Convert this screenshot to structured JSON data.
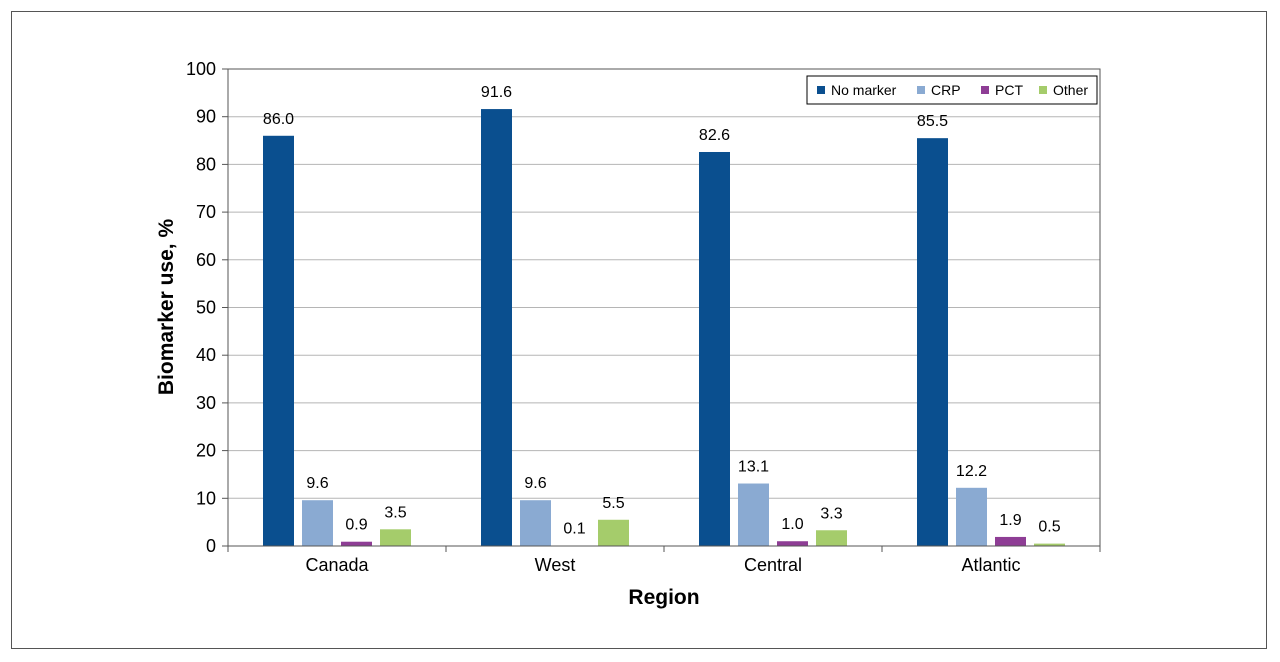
{
  "chart_data": {
    "type": "bar",
    "title": "",
    "xlabel": "Region",
    "ylabel": "Biomarker use, %",
    "ylim": [
      0,
      100
    ],
    "yticks": [
      0,
      10,
      20,
      30,
      40,
      50,
      60,
      70,
      80,
      90,
      100
    ],
    "grid": true,
    "legend_position": "top-right",
    "categories": [
      "Canada",
      "West",
      "Central",
      "Atlantic"
    ],
    "series": [
      {
        "name": "No marker",
        "color": "#0a4f8f",
        "values": [
          86.0,
          91.6,
          82.6,
          85.5
        ],
        "labels": [
          "86.0",
          "91.6",
          "82.6",
          "85.5"
        ]
      },
      {
        "name": "CRP",
        "color": "#8aaad2",
        "values": [
          9.6,
          9.6,
          13.1,
          12.2
        ],
        "labels": [
          "9.6",
          "9.6",
          "13.1",
          "12.2"
        ]
      },
      {
        "name": "PCT",
        "color": "#8e3d95",
        "values": [
          0.9,
          0.1,
          1.0,
          1.9
        ],
        "labels": [
          "0.9",
          "0.1",
          "1.0",
          "1.9"
        ]
      },
      {
        "name": "Other",
        "color": "#a5cc6b",
        "values": [
          3.5,
          5.5,
          3.3,
          0.5
        ],
        "labels": [
          "3.5",
          "5.5",
          "3.3",
          "0.5"
        ]
      }
    ]
  }
}
